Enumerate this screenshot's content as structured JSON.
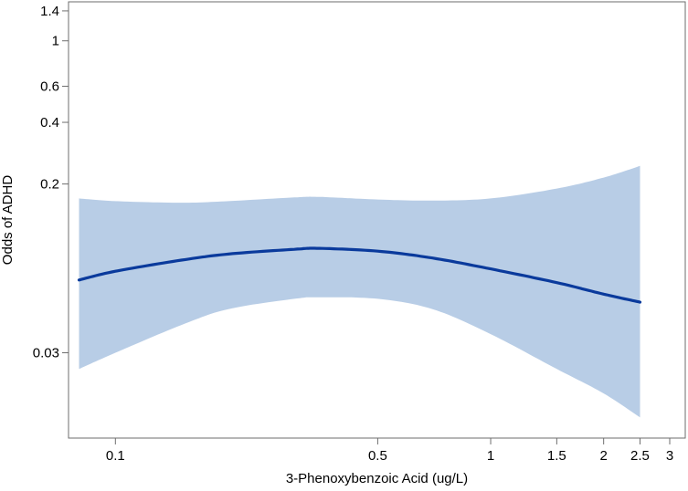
{
  "chart_data": {
    "type": "line",
    "title": "",
    "xlabel": "3-Phenoxybenzoic Acid (ug/L)",
    "ylabel": "Odds of ADHD",
    "x_scale": "log",
    "y_scale": "log",
    "xlim": [
      0.075,
      3.3
    ],
    "ylim": [
      0.0115,
      1.55
    ],
    "x_ticks": [
      {
        "value": 0.1,
        "label": "0.1"
      },
      {
        "value": 0.5,
        "label": "0.5"
      },
      {
        "value": 1,
        "label": "1"
      },
      {
        "value": 1.5,
        "label": "1.5"
      },
      {
        "value": 2,
        "label": "2"
      },
      {
        "value": 2.5,
        "label": "2.5"
      },
      {
        "value": 3,
        "label": "3"
      }
    ],
    "y_ticks": [
      {
        "value": 0.03,
        "label": "0.03"
      },
      {
        "value": 0.2,
        "label": "0.2"
      },
      {
        "value": 0.4,
        "label": "0.4"
      },
      {
        "value": 0.6,
        "label": "0.6"
      },
      {
        "value": 1,
        "label": "1"
      },
      {
        "value": 1.4,
        "label": "1.4"
      }
    ],
    "grid": false,
    "colors": {
      "line": "#0a3a9c",
      "band": "#b8cde6",
      "axis": "#6e6e6e"
    },
    "series": [
      {
        "x": [
          0.08,
          0.1,
          0.15,
          0.2,
          0.3,
          0.35,
          0.5,
          0.7,
          1.0,
          1.5,
          2.0,
          2.5
        ],
        "y": [
          0.068,
          0.075,
          0.085,
          0.091,
          0.096,
          0.097,
          0.094,
          0.087,
          0.077,
          0.066,
          0.058,
          0.053
        ],
        "lower": [
          0.025,
          0.03,
          0.041,
          0.049,
          0.055,
          0.056,
          0.055,
          0.049,
          0.037,
          0.025,
          0.019,
          0.0145
        ],
        "upper": [
          0.17,
          0.165,
          0.162,
          0.165,
          0.172,
          0.173,
          0.168,
          0.166,
          0.17,
          0.19,
          0.215,
          0.245
        ]
      }
    ]
  }
}
